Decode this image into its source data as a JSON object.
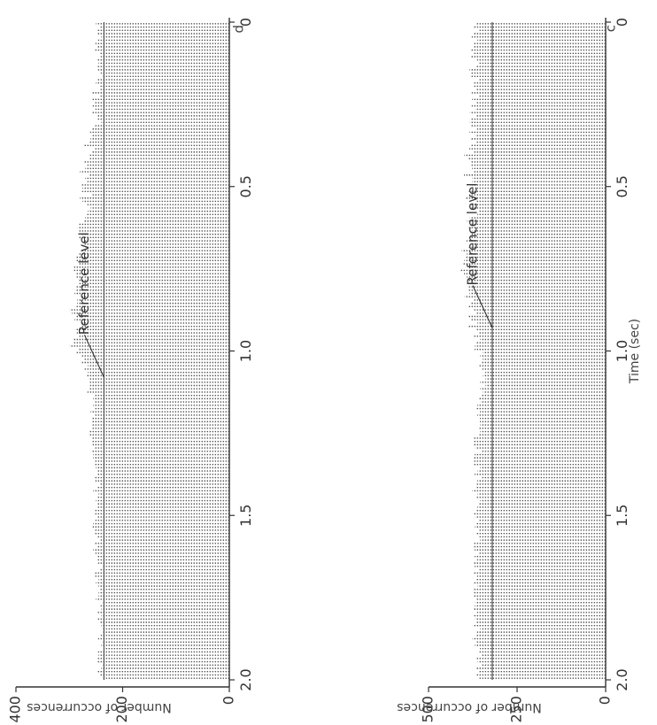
{
  "chart_data": [
    {
      "type": "bar",
      "panel_label": "d",
      "orientation": "horizontal-bars (figure printed rotated 90°)",
      "xlabel": "",
      "ylabel": "Number of occurrences",
      "xlim": [
        0,
        2.0
      ],
      "ylim": [
        0,
        400
      ],
      "x_ticks": [
        0,
        0.5,
        1.0,
        1.5,
        2.0
      ],
      "x_tick_labels": [
        "0",
        "0.5",
        "1.0",
        "1.5",
        "2.0"
      ],
      "y_ticks": [
        0,
        200,
        400
      ],
      "y_tick_labels": [
        "0",
        "200",
        "400"
      ],
      "reference_level": 235,
      "annotation": {
        "text": "Reference level",
        "x": 1.08
      },
      "bin_width": 0.01,
      "grid": false,
      "values": [
        250,
        244,
        247,
        248,
        240,
        246,
        251,
        247,
        252,
        243,
        241,
        249,
        245,
        247,
        246,
        241,
        238,
        248,
        250,
        242,
        242,
        259,
        244,
        259,
        252,
        256,
        251,
        257,
        247,
        249,
        240,
        254,
        258,
        261,
        259,
        260,
        263,
        273,
        253,
        258,
        262,
        264,
        272,
        266,
        270,
        280,
        264,
        270,
        266,
        277,
        275,
        276,
        257,
        280,
        275,
        266,
        260,
        265,
        268,
        270,
        272,
        282,
        284,
        283,
        276,
        282,
        272,
        273,
        266,
        278,
        283,
        287,
        288,
        283,
        291,
        291,
        288,
        288,
        282,
        281,
        288,
        289,
        290,
        279,
        285,
        285,
        289,
        299,
        295,
        288,
        290,
        277,
        276,
        289,
        286,
        282,
        293,
        291,
        299,
        282,
        286,
        277,
        272,
        276,
        265,
        271,
        265,
        268,
        264,
        263,
        261,
        263,
        266,
        254,
        255,
        253,
        255,
        254,
        260,
        252,
        258,
        259,
        257,
        258,
        263,
        262,
        259,
        258,
        256,
        254,
        259,
        255,
        255,
        253,
        253,
        250,
        247,
        248,
        253,
        251,
        243,
        248,
        255,
        245,
        249,
        250,
        248,
        249,
        254,
        254,
        249,
        251,
        255,
        256,
        252,
        254,
        248,
        241,
        254,
        247,
        255,
        251,
        248,
        249,
        246,
        239,
        244,
        252,
        254,
        245,
        250,
        245,
        244,
        245,
        245,
        250,
        237,
        244,
        240,
        248,
        240,
        249,
        244,
        240,
        239,
        238,
        241,
        246,
        239,
        240,
        235,
        246,
        245,
        249,
        247,
        238,
        240,
        248,
        242,
        236
      ]
    },
    {
      "type": "bar",
      "panel_label": "c",
      "orientation": "horizontal-bars (figure printed rotated 90°)",
      "xlabel": "Time (sec)",
      "ylabel": "Number of occurrences",
      "xlim": [
        0,
        2.0
      ],
      "ylim": [
        0,
        500
      ],
      "x_ticks": [
        0,
        0.5,
        1.0,
        1.5,
        2.0
      ],
      "x_tick_labels": [
        "0",
        "0.5",
        "1.0",
        "1.5",
        "2.0"
      ],
      "y_ticks": [
        0,
        250,
        500
      ],
      "y_tick_labels": [
        "0",
        "250",
        "500"
      ],
      "reference_level": 320,
      "annotation": {
        "text": "Reference level",
        "x": 0.93
      },
      "bin_width": 0.01,
      "grid": false,
      "values": [
        367,
        374,
        360,
        372,
        378,
        362,
        371,
        372,
        380,
        375,
        381,
        363,
        356,
        364,
        384,
        380,
        382,
        359,
        375,
        372,
        364,
        378,
        359,
        377,
        365,
        378,
        368,
        383,
        366,
        380,
        383,
        381,
        363,
        384,
        368,
        379,
        366,
        380,
        385,
        374,
        399,
        390,
        382,
        379,
        377,
        372,
        400,
        376,
        376,
        378,
        366,
        389,
        385,
        394,
        364,
        384,
        382,
        360,
        362,
        383,
        391,
        383,
        387,
        376,
        378,
        383,
        393,
        377,
        387,
        406,
        392,
        397,
        399,
        402,
        384,
        410,
        400,
        392,
        388,
        389,
        389,
        386,
        384,
        398,
        374,
        379,
        389,
        373,
        367,
        390,
        382,
        362,
        388,
        365,
        356,
        372,
        354,
        364,
        369,
        370,
        346,
        354,
        347,
        352,
        360,
        348,
        340,
        346,
        339,
        354,
        339,
        354,
        346,
        349,
        358,
        353,
        362,
        364,
        355,
        362,
        355,
        355,
        354,
        359,
        354,
        358,
        372,
        375,
        372,
        368,
        352,
        370,
        371,
        371,
        373,
        354,
        361,
        370,
        350,
        362,
        364,
        366,
        376,
        361,
        366,
        354,
        357,
        362,
        365,
        371,
        368,
        356,
        367,
        369,
        359,
        366,
        358,
        354,
        372,
        375,
        370,
        360,
        370,
        363,
        374,
        370,
        357,
        374,
        363,
        367,
        375,
        361,
        372,
        371,
        372,
        364,
        368,
        369,
        371,
        363,
        372,
        368,
        364,
        371,
        354,
        363,
        365,
        376,
        366,
        369,
        355,
        358,
        352,
        364,
        361,
        349,
        364,
        360,
        364,
        359
      ]
    }
  ]
}
